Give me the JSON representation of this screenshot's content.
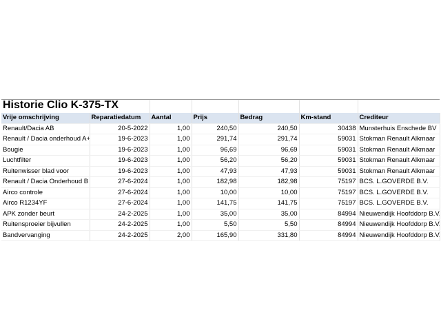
{
  "sheet": {
    "title": "Historie Clio K-375-TX",
    "columns": [
      "Vrije omschrijving",
      "Reparatiedatum",
      "Aantal",
      "Prijs",
      "Bedrag",
      "Km-stand",
      "Crediteur"
    ],
    "rows": [
      [
        "Renault/Dacia AB",
        "20-5-2022",
        "1,00",
        "240,50",
        "240,50",
        "30438",
        "Munsterhuis Enschede BV"
      ],
      [
        "Renault / Dacia onderhoud A+",
        "19-6-2023",
        "1,00",
        "291,74",
        "291,74",
        "59031",
        "Stokman Renault Alkmaar"
      ],
      [
        "Bougie",
        "19-6-2023",
        "1,00",
        "96,69",
        "96,69",
        "59031",
        "Stokman Renault Alkmaar"
      ],
      [
        "Luchtfilter",
        "19-6-2023",
        "1,00",
        "56,20",
        "56,20",
        "59031",
        "Stokman Renault Alkmaar"
      ],
      [
        "Ruitenwisser blad voor",
        "19-6-2023",
        "1,00",
        "47,93",
        "47,93",
        "59031",
        "Stokman Renault Alkmaar"
      ],
      [
        "Renault / Dacia Onderhoud B",
        "27-6-2024",
        "1,00",
        "182,98",
        "182,98",
        "75197",
        "BCS. L.GOVERDE B.V."
      ],
      [
        "Airco controle",
        "27-6-2024",
        "1,00",
        "10,00",
        "10,00",
        "75197",
        "BCS. L.GOVERDE B.V."
      ],
      [
        "Airco R1234YF",
        "27-6-2024",
        "1,00",
        "141,75",
        "141,75",
        "75197",
        "BCS. L.GOVERDE B.V."
      ],
      [
        "APK zonder beurt",
        "24-2-2025",
        "1,00",
        "35,00",
        "35,00",
        "84994",
        "Nieuwendijk Hoofddorp B.V."
      ],
      [
        "Ruitensproeier bijvullen",
        "24-2-2025",
        "1,00",
        "5,50",
        "5,50",
        "84994",
        "Nieuwendijk Hoofddorp B.V."
      ],
      [
        "Bandvervanging",
        "24-2-2025",
        "2,00",
        "165,90",
        "331,80",
        "84994",
        "Nieuwendijk Hoofddorp B.V."
      ]
    ]
  }
}
